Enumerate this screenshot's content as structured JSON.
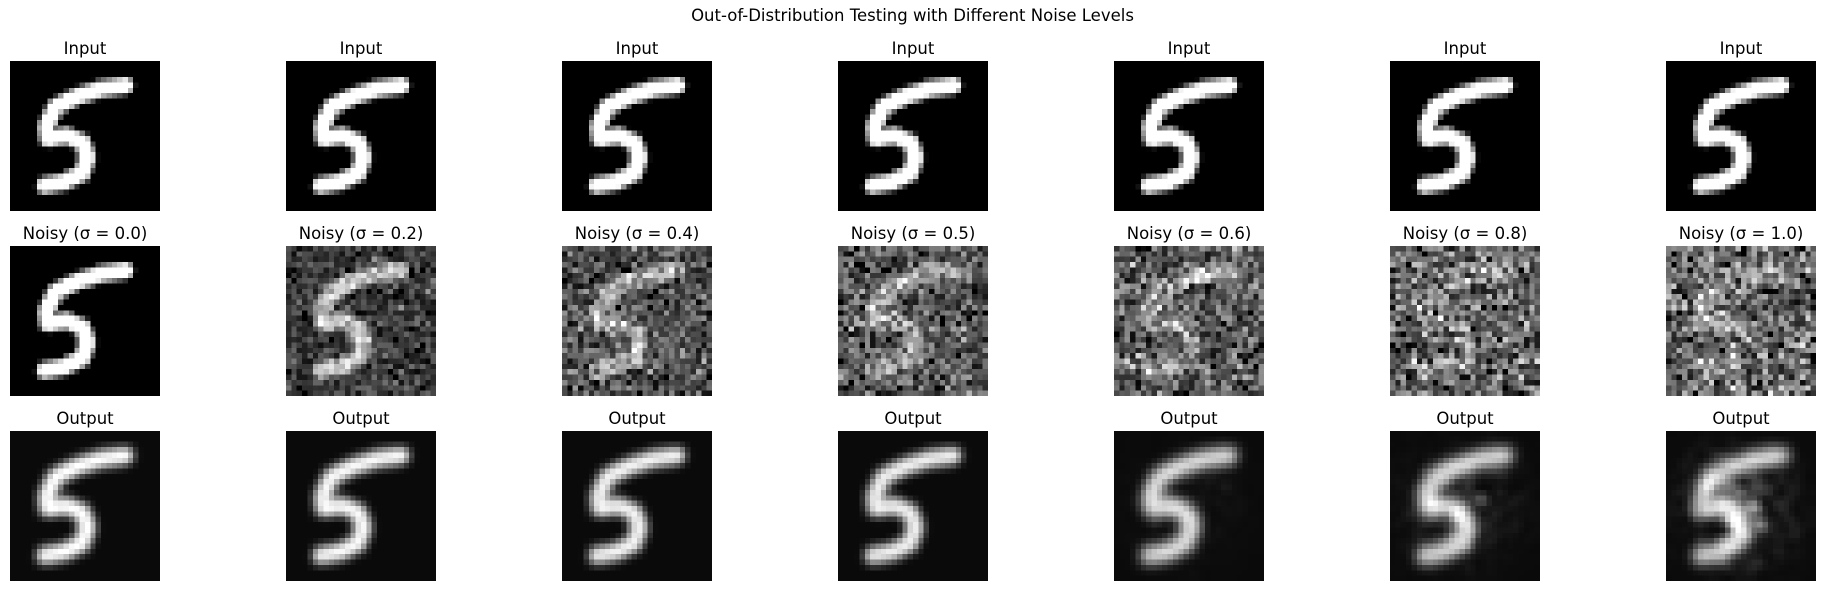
{
  "figure": {
    "title": "Out-of-Distribution Testing with Different Noise Levels"
  },
  "rows": [
    {
      "kind": "input",
      "panels": [
        {
          "title": "Input",
          "noise": 0.0
        },
        {
          "title": "Input",
          "noise": 0.0
        },
        {
          "title": "Input",
          "noise": 0.0
        },
        {
          "title": "Input",
          "noise": 0.0
        },
        {
          "title": "Input",
          "noise": 0.0
        },
        {
          "title": "Input",
          "noise": 0.0
        },
        {
          "title": "Input",
          "noise": 0.0
        }
      ]
    },
    {
      "kind": "noisy",
      "panels": [
        {
          "title": "Noisy (σ = 0.0)",
          "noise": 0.0
        },
        {
          "title": "Noisy (σ = 0.2)",
          "noise": 0.2
        },
        {
          "title": "Noisy (σ = 0.4)",
          "noise": 0.4
        },
        {
          "title": "Noisy (σ = 0.5)",
          "noise": 0.5
        },
        {
          "title": "Noisy (σ = 0.6)",
          "noise": 0.6
        },
        {
          "title": "Noisy (σ = 0.8)",
          "noise": 0.8
        },
        {
          "title": "Noisy (σ = 1.0)",
          "noise": 1.0
        }
      ]
    },
    {
      "kind": "output",
      "panels": [
        {
          "title": "Output",
          "noise": 0.0
        },
        {
          "title": "Output",
          "noise": 0.2
        },
        {
          "title": "Output",
          "noise": 0.4
        },
        {
          "title": "Output",
          "noise": 0.5
        },
        {
          "title": "Output",
          "noise": 0.6
        },
        {
          "title": "Output",
          "noise": 0.8
        },
        {
          "title": "Output",
          "noise": 1.0
        }
      ]
    }
  ]
}
